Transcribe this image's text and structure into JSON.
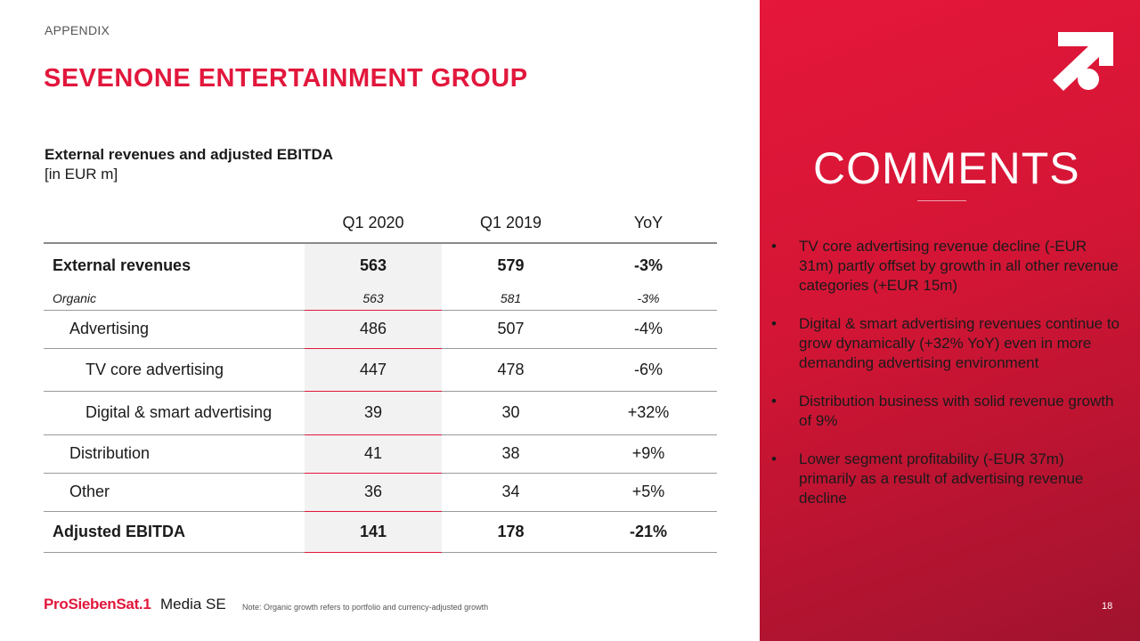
{
  "header": {
    "kicker": "APPENDIX",
    "title": "SEVENONE ENTERTAINMENT GROUP"
  },
  "table_caption": {
    "line1": "External revenues and adjusted EBITDA",
    "line2": "[in EUR m]"
  },
  "table": {
    "columns": [
      "",
      "Q1 2020",
      "Q1 2019",
      "YoY"
    ],
    "rows": [
      {
        "label": "External revenues",
        "q1_2020": "563",
        "q1_2019": "579",
        "yoy": "-3%"
      },
      {
        "label": "Organic",
        "q1_2020": "563",
        "q1_2019": "581",
        "yoy": "-3%"
      },
      {
        "label": "Advertising",
        "q1_2020": "486",
        "q1_2019": "507",
        "yoy": "-4%"
      },
      {
        "label": "TV core advertising",
        "q1_2020": "447",
        "q1_2019": "478",
        "yoy": "-6%"
      },
      {
        "label": "Digital & smart advertising",
        "q1_2020": "39",
        "q1_2019": "30",
        "yoy": "+32%"
      },
      {
        "label": "Distribution",
        "q1_2020": "41",
        "q1_2019": "38",
        "yoy": "+9%"
      },
      {
        "label": "Other",
        "q1_2020": "36",
        "q1_2019": "34",
        "yoy": "+5%"
      },
      {
        "label": "Adjusted EBITDA",
        "q1_2020": "141",
        "q1_2019": "178",
        "yoy": "-21%"
      }
    ]
  },
  "footer": {
    "brand": "ProSiebenSat.1",
    "brand_suffix": "Media SE",
    "note": "Note: Organic growth refers to portfolio and currency-adjusted growth",
    "page_number": "18"
  },
  "comments": {
    "title": "COMMENTS",
    "bullet_char": "•",
    "items": [
      "TV core advertising revenue decline (-EUR 31m) partly offset by growth in all other revenue categories (+EUR 15m)",
      "Digital & smart advertising revenues continue to grow dynamically (+32% YoY) even in more demanding advertising environment",
      "Distribution business with solid revenue growth of 9%",
      "Lower segment profitability (-EUR 37m) primarily as a result of advertising revenue decline"
    ]
  },
  "colors": {
    "brand_red": "#e2173c",
    "panel_red_dark": "#a0132e"
  },
  "icons": {
    "emblem": "prosiebensat1-logo-icon"
  }
}
